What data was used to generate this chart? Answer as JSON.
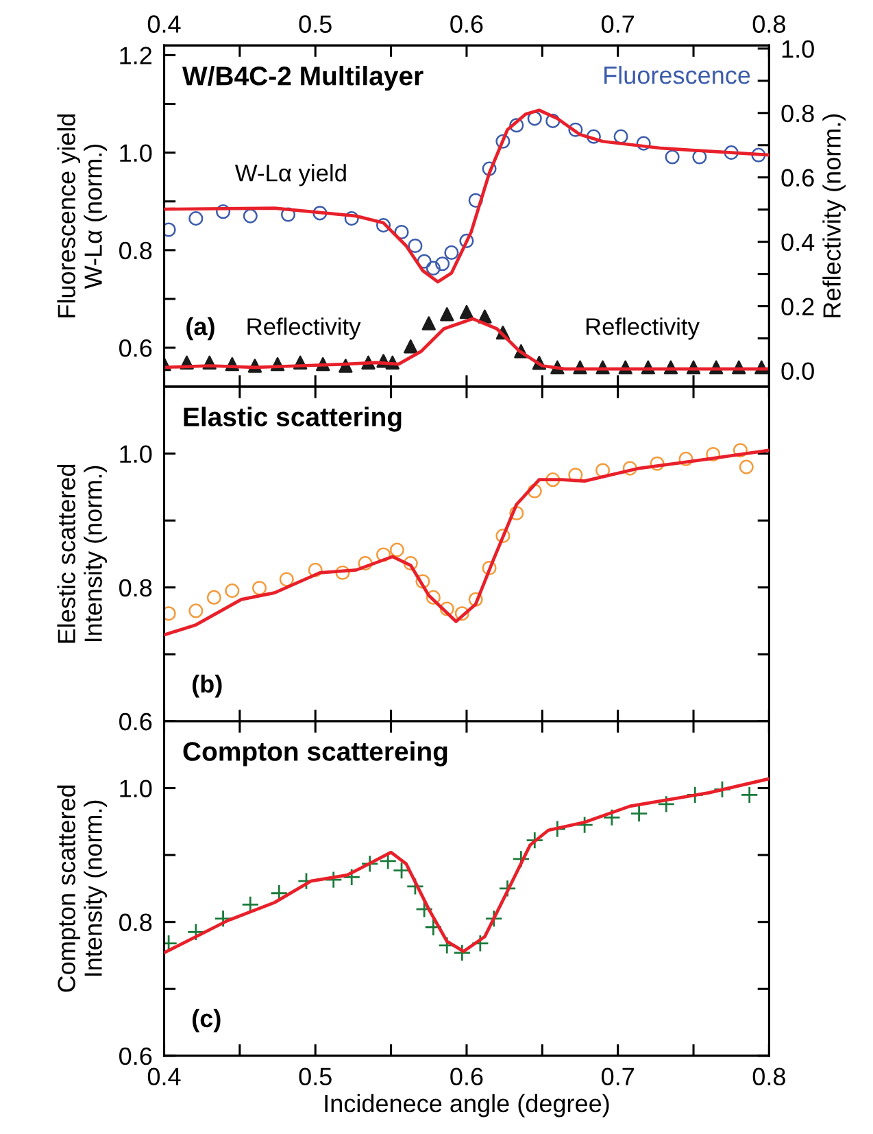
{
  "chart_data": [
    {
      "type": "scatter",
      "title": "W/B4C-2 Multilayer",
      "ylabel": "Fluorescence yield\nW-Lα (norm.)",
      "y2label": "Reflectivity (norm.)",
      "annotations": [
        "W-Lα yield",
        "Reflectivity",
        "Reflectivity",
        "(a)"
      ],
      "xlim": [
        0.4,
        0.8
      ],
      "xticks": [
        0.4,
        {
          "value": 0.45,
          "label": null
        },
        0.5,
        {
          "value": 0.55,
          "label": null
        },
        0.6,
        {
          "value": 0.65,
          "label": null
        },
        0.7,
        {
          "value": 0.75,
          "label": null
        },
        0.8
      ],
      "x2lim": [
        0.4,
        0.8
      ],
      "x2ticks": [
        0.4,
        {
          "value": 0.45,
          "label": null
        },
        0.5,
        {
          "value": 0.55,
          "label": null
        },
        0.6,
        {
          "value": 0.65,
          "label": null
        },
        0.7,
        {
          "value": 0.75,
          "label": null
        },
        0.8
      ],
      "ylim": [
        0.52,
        1.22
      ],
      "yticks": [
        0.6,
        {
          "value": 0.7,
          "label": null
        },
        0.8,
        {
          "value": 0.9,
          "label": null
        },
        {
          "value": 1.0,
          "label": "1.0"
        },
        {
          "value": 1.1,
          "label": null
        },
        1.2
      ],
      "y2lim": [
        -0.05,
        1.01
      ],
      "y2ticks": [
        {
          "value": 0.0,
          "label": "0.0"
        },
        {
          "value": 0.1,
          "label": null
        },
        0.2,
        {
          "value": 0.3,
          "label": null
        },
        0.4,
        {
          "value": 0.5,
          "label": null
        },
        0.6,
        {
          "value": 0.7,
          "label": null
        },
        0.8,
        {
          "value": 0.9,
          "label": null
        },
        {
          "value": 1.0,
          "label": "1.0"
        }
      ],
      "tick_labels": "y",
      "series": [
        {
          "name": "Fluorescence",
          "marker": "circle",
          "color": "#3b5bab",
          "x": [
            0.403,
            0.421,
            0.439,
            0.457,
            0.482,
            0.503,
            0.524,
            0.545,
            0.557,
            0.566,
            0.572,
            0.578,
            0.584,
            0.59,
            0.6,
            0.606,
            0.615,
            0.624,
            0.633,
            0.645,
            0.657,
            0.672,
            0.684,
            0.702,
            0.717,
            0.736,
            0.754,
            0.775,
            0.793
          ],
          "values": [
            0.842,
            0.865,
            0.879,
            0.87,
            0.873,
            0.876,
            0.865,
            0.851,
            0.837,
            0.809,
            0.777,
            0.763,
            0.772,
            0.795,
            0.819,
            0.902,
            0.967,
            1.023,
            1.056,
            1.07,
            1.065,
            1.047,
            1.033,
            1.033,
            1.019,
            0.991,
            0.991,
            1.0,
            0.995
          ]
        },
        {
          "type": "line",
          "color": "#e8202a",
          "x": [
            0.4,
            0.473,
            0.527,
            0.545,
            0.56,
            0.571,
            0.581,
            0.59,
            0.603,
            0.615,
            0.627,
            0.639,
            0.648,
            0.66,
            0.675,
            0.69,
            0.729,
            0.8
          ],
          "values": [
            0.884,
            0.886,
            0.87,
            0.856,
            0.809,
            0.758,
            0.735,
            0.753,
            0.837,
            0.958,
            1.047,
            1.079,
            1.087,
            1.07,
            1.037,
            1.023,
            1.009,
            0.995
          ]
        },
        {
          "marker": "triangle",
          "axis": "y2",
          "color": "#1a1a1a",
          "x": [
            0.4,
            0.415,
            0.43,
            0.445,
            0.46,
            0.475,
            0.49,
            0.505,
            0.52,
            0.535,
            0.545,
            0.551,
            0.563,
            0.575,
            0.587,
            0.6,
            0.612,
            0.624,
            0.636,
            0.648,
            0.66,
            0.675,
            0.69,
            0.705,
            0.72,
            0.735,
            0.75,
            0.765,
            0.78,
            0.795
          ],
          "values": [
            0.02,
            0.025,
            0.025,
            0.02,
            0.015,
            0.02,
            0.025,
            0.02,
            0.015,
            0.025,
            0.03,
            0.025,
            0.075,
            0.147,
            0.175,
            0.182,
            0.168,
            0.118,
            0.06,
            0.024,
            0.01,
            0.01,
            0.01,
            0.01,
            0.01,
            0.01,
            0.01,
            0.01,
            0.01,
            0.01
          ]
        },
        {
          "type": "line",
          "axis": "y2",
          "color": "#e8202a",
          "x": [
            0.4,
            0.43,
            0.46,
            0.49,
            0.52,
            0.54,
            0.555,
            0.57,
            0.585,
            0.604,
            0.62,
            0.635,
            0.65,
            0.665,
            0.7,
            0.8
          ],
          "values": [
            0.01,
            0.015,
            0.01,
            0.015,
            0.02,
            0.025,
            0.02,
            0.06,
            0.13,
            0.161,
            0.13,
            0.06,
            0.015,
            0.005,
            0.005,
            0.005
          ]
        }
      ]
    },
    {
      "type": "scatter",
      "title": "Elastic scattering",
      "ylabel": "Elestic scattered\nIntensity (norm.)",
      "annotations": [
        "(b)"
      ],
      "xlim": [
        0.4,
        0.8
      ],
      "xticks": [
        0.4,
        {
          "value": 0.45,
          "label": null
        },
        0.5,
        {
          "value": 0.55,
          "label": null
        },
        0.6,
        {
          "value": 0.65,
          "label": null
        },
        0.7,
        {
          "value": 0.75,
          "label": null
        },
        0.8
      ],
      "ylim": [
        0.6,
        1.1
      ],
      "yticks": [
        0.6,
        {
          "value": 0.7,
          "label": null
        },
        0.8,
        {
          "value": 0.9,
          "label": null
        },
        {
          "value": 1.0,
          "label": "1.0"
        }
      ],
      "tick_labels": "y",
      "series": [
        {
          "marker": "circle",
          "color": "#f39a3a",
          "x": [
            0.403,
            0.421,
            0.433,
            0.445,
            0.463,
            0.481,
            0.5,
            0.518,
            0.533,
            0.545,
            0.554,
            0.563,
            0.571,
            0.578,
            0.587,
            0.597,
            0.606,
            0.615,
            0.624,
            0.633,
            0.645,
            0.657,
            0.672,
            0.69,
            0.708,
            0.726,
            0.745,
            0.763,
            0.781,
            0.785
          ],
          "values": [
            0.761,
            0.765,
            0.785,
            0.795,
            0.799,
            0.812,
            0.826,
            0.822,
            0.836,
            0.849,
            0.856,
            0.836,
            0.809,
            0.785,
            0.768,
            0.761,
            0.782,
            0.829,
            0.877,
            0.911,
            0.944,
            0.961,
            0.968,
            0.975,
            0.978,
            0.985,
            0.992,
            0.999,
            1.005,
            0.98
          ]
        },
        {
          "type": "line",
          "color": "#e8202a",
          "x": [
            0.4,
            0.421,
            0.451,
            0.473,
            0.503,
            0.527,
            0.551,
            0.563,
            0.575,
            0.593,
            0.606,
            0.618,
            0.633,
            0.648,
            0.663,
            0.678,
            0.714,
            0.76,
            0.8
          ],
          "values": [
            0.729,
            0.744,
            0.782,
            0.792,
            0.822,
            0.826,
            0.846,
            0.833,
            0.788,
            0.749,
            0.775,
            0.843,
            0.924,
            0.961,
            0.961,
            0.959,
            0.978,
            0.992,
            1.005
          ]
        }
      ]
    },
    {
      "type": "scatter",
      "title": "Compton scattereing",
      "ylabel": "Compton scattered\nIntensity (norm.)",
      "xlabel": "Incidenece angle (degree)",
      "annotations": [
        "(c)"
      ],
      "xlim": [
        0.4,
        0.8
      ],
      "xticks": [
        0.4,
        {
          "value": 0.45,
          "label": null
        },
        0.5,
        {
          "value": 0.55,
          "label": null
        },
        0.6,
        {
          "value": 0.65,
          "label": null
        },
        0.7,
        {
          "value": 0.75,
          "label": null
        },
        0.8
      ],
      "ylim": [
        0.6,
        1.1
      ],
      "yticks": [
        0.6,
        {
          "value": 0.7,
          "label": null
        },
        0.8,
        {
          "value": 0.9,
          "label": null
        },
        {
          "value": 1.0,
          "label": "1.0"
        }
      ],
      "series": [
        {
          "marker": "cross",
          "color": "#1a7a3a",
          "x": [
            0.403,
            0.421,
            0.439,
            0.457,
            0.476,
            0.494,
            0.512,
            0.524,
            0.536,
            0.548,
            0.557,
            0.566,
            0.572,
            0.578,
            0.587,
            0.597,
            0.609,
            0.618,
            0.627,
            0.636,
            0.645,
            0.66,
            0.678,
            0.696,
            0.714,
            0.732,
            0.751,
            0.769,
            0.787
          ],
          "values": [
            0.768,
            0.785,
            0.805,
            0.826,
            0.843,
            0.861,
            0.863,
            0.867,
            0.887,
            0.891,
            0.877,
            0.853,
            0.819,
            0.792,
            0.765,
            0.754,
            0.768,
            0.805,
            0.85,
            0.894,
            0.922,
            0.939,
            0.945,
            0.956,
            0.962,
            0.976,
            0.99,
            0.998,
            0.99
          ]
        },
        {
          "type": "line",
          "color": "#e8202a",
          "x": [
            0.4,
            0.442,
            0.473,
            0.497,
            0.521,
            0.533,
            0.55,
            0.56,
            0.575,
            0.587,
            0.598,
            0.612,
            0.627,
            0.642,
            0.654,
            0.678,
            0.708,
            0.76,
            0.8
          ],
          "values": [
            0.754,
            0.802,
            0.829,
            0.861,
            0.87,
            0.884,
            0.904,
            0.887,
            0.819,
            0.771,
            0.756,
            0.778,
            0.846,
            0.915,
            0.937,
            0.949,
            0.973,
            0.993,
            1.014
          ]
        }
      ]
    }
  ]
}
